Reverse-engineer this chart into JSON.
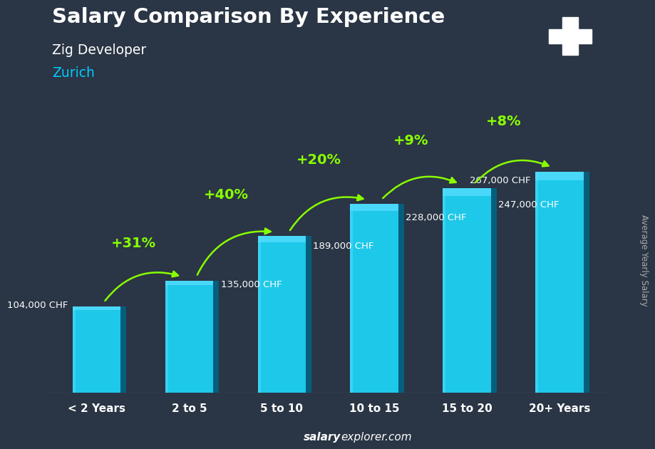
{
  "title": "Salary Comparison By Experience",
  "subtitle": "Zig Developer",
  "city": "Zurich",
  "ylabel": "Average Yearly Salary",
  "footer_bold": "salary",
  "footer_normal": "explorer.com",
  "categories": [
    "< 2 Years",
    "2 to 5",
    "5 to 10",
    "10 to 15",
    "15 to 20",
    "20+ Years"
  ],
  "values": [
    104000,
    135000,
    189000,
    228000,
    247000,
    267000
  ],
  "labels": [
    "104,000 CHF",
    "135,000 CHF",
    "189,000 CHF",
    "228,000 CHF",
    "247,000 CHF",
    "267,000 CHF"
  ],
  "pct_labels": [
    "+31%",
    "+40%",
    "+20%",
    "+9%",
    "+8%"
  ],
  "bar_color_main": "#1ec8e8",
  "bar_color_light": "#55ddff",
  "bar_color_dark": "#0095bb",
  "bar_color_side": "#006688",
  "bg_color": "#2a3545",
  "title_color": "#ffffff",
  "subtitle_color": "#ffffff",
  "city_color": "#00ccff",
  "label_color": "#ffffff",
  "pct_color": "#88ff00",
  "arrow_color": "#88ff00",
  "flag_red": "#e8112d",
  "ylim_max": 320000,
  "bar_width": 0.52
}
